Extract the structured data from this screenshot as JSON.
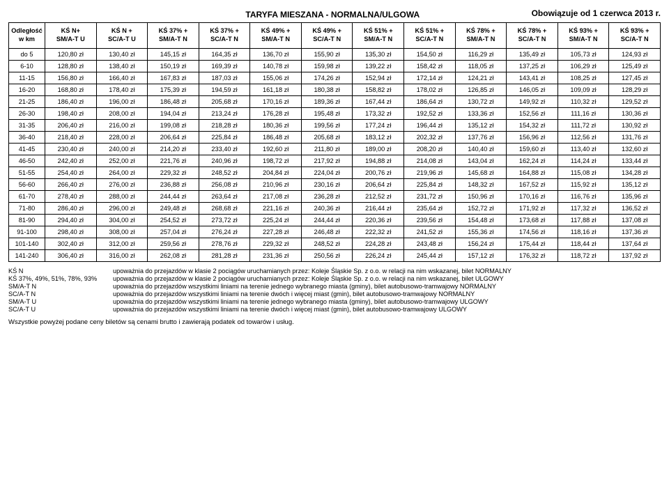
{
  "header": {
    "title": "TARYFA MIESZANA - NORMALNA/ULGOWA",
    "effective": "Obowiązuje od 1 czerwca 2013 r."
  },
  "table": {
    "col_header_dist_l1": "Odległość",
    "col_header_dist_l2": "w km",
    "columns": [
      {
        "l1": "KŚ N+",
        "l2": "SM/A-T U"
      },
      {
        "l1": "KŚ N +",
        "l2": "SC/A-T U"
      },
      {
        "l1": "KŚ 37% +",
        "l2": "SM/A-T N"
      },
      {
        "l1": "KŚ 37% +",
        "l2": "SC/A-T N"
      },
      {
        "l1": "KŚ 49% +",
        "l2": "SM/A-T N"
      },
      {
        "l1": "KŚ 49% +",
        "l2": "SC/A-T N"
      },
      {
        "l1": "KŚ 51% +",
        "l2": "SM/A-T N"
      },
      {
        "l1": "KŚ 51% +",
        "l2": "SC/A-T N"
      },
      {
        "l1": "KŚ 78% +",
        "l2": "SM/A-T N"
      },
      {
        "l1": "KŚ 78% +",
        "l2": "SC/A-T N"
      },
      {
        "l1": "KŚ 93% +",
        "l2": "SM/A-T N"
      },
      {
        "l1": "KŚ 93% +",
        "l2": "SC/A-T N"
      }
    ],
    "rows": [
      {
        "dist": "do 5",
        "cells": [
          "120,80 zł",
          "130,40 zł",
          "145,15 zł",
          "164,35 zł",
          "136,70 zł",
          "155,90 zł",
          "135,30 zł",
          "154,50 zł",
          "116,29 zł",
          "135,49 zł",
          "105,73 zł",
          "124,93 zł"
        ]
      },
      {
        "dist": "6-10",
        "cells": [
          "128,80 zł",
          "138,40 zł",
          "150,19 zł",
          "169,39 zł",
          "140,78 zł",
          "159,98 zł",
          "139,22 zł",
          "158,42 zł",
          "118,05 zł",
          "137,25 zł",
          "106,29 zł",
          "125,49 zł"
        ]
      },
      {
        "dist": "11-15",
        "cells": [
          "156,80 zł",
          "166,40 zł",
          "167,83 zł",
          "187,03 zł",
          "155,06 zł",
          "174,26 zł",
          "152,94 zł",
          "172,14 zł",
          "124,21 zł",
          "143,41 zł",
          "108,25 zł",
          "127,45 zł"
        ]
      },
      {
        "dist": "16-20",
        "cells": [
          "168,80 zł",
          "178,40 zł",
          "175,39 zł",
          "194,59 zł",
          "161,18 zł",
          "180,38 zł",
          "158,82 zł",
          "178,02 zł",
          "126,85 zł",
          "146,05 zł",
          "109,09 zł",
          "128,29 zł"
        ]
      },
      {
        "dist": "21-25",
        "cells": [
          "186,40 zł",
          "196,00 zł",
          "186,48 zł",
          "205,68 zł",
          "170,16 zł",
          "189,36 zł",
          "167,44 zł",
          "186,64 zł",
          "130,72 zł",
          "149,92 zł",
          "110,32 zł",
          "129,52 zł"
        ]
      },
      {
        "dist": "26-30",
        "cells": [
          "198,40 zł",
          "208,00 zł",
          "194,04 zł",
          "213,24 zł",
          "176,28 zł",
          "195,48 zł",
          "173,32 zł",
          "192,52 zł",
          "133,36 zł",
          "152,56 zł",
          "111,16 zł",
          "130,36 zł"
        ]
      },
      {
        "dist": "31-35",
        "cells": [
          "206,40 zł",
          "216,00 zł",
          "199,08 zł",
          "218,28 zł",
          "180,36 zł",
          "199,56 zł",
          "177,24 zł",
          "196,44 zł",
          "135,12 zł",
          "154,32 zł",
          "111,72 zł",
          "130,92 zł"
        ]
      },
      {
        "dist": "36-40",
        "cells": [
          "218,40 zł",
          "228,00 zł",
          "206,64 zł",
          "225,84 zł",
          "186,48 zł",
          "205,68 zł",
          "183,12 zł",
          "202,32 zł",
          "137,76 zł",
          "156,96 zł",
          "112,56 zł",
          "131,76 zł"
        ]
      },
      {
        "dist": "41-45",
        "cells": [
          "230,40 zł",
          "240,00 zł",
          "214,20 zł",
          "233,40 zł",
          "192,60 zł",
          "211,80 zł",
          "189,00 zł",
          "208,20 zł",
          "140,40 zł",
          "159,60 zł",
          "113,40 zł",
          "132,60 zł"
        ]
      },
      {
        "dist": "46-50",
        "cells": [
          "242,40 zł",
          "252,00 zł",
          "221,76 zł",
          "240,96 zł",
          "198,72 zł",
          "217,92 zł",
          "194,88 zł",
          "214,08 zł",
          "143,04 zł",
          "162,24 zł",
          "114,24 zł",
          "133,44 zł"
        ]
      },
      {
        "dist": "51-55",
        "cells": [
          "254,40 zł",
          "264,00 zł",
          "229,32 zł",
          "248,52 zł",
          "204,84 zł",
          "224,04 zł",
          "200,76 zł",
          "219,96 zł",
          "145,68 zł",
          "164,88 zł",
          "115,08 zł",
          "134,28 zł"
        ]
      },
      {
        "dist": "56-60",
        "cells": [
          "266,40 zł",
          "276,00 zł",
          "236,88 zł",
          "256,08 zł",
          "210,96 zł",
          "230,16 zł",
          "206,64 zł",
          "225,84 zł",
          "148,32 zł",
          "167,52 zł",
          "115,92 zł",
          "135,12 zł"
        ]
      },
      {
        "dist": "61-70",
        "cells": [
          "278,40 zł",
          "288,00 zł",
          "244,44 zł",
          "263,64 zł",
          "217,08 zł",
          "236,28 zł",
          "212,52 zł",
          "231,72 zł",
          "150,96 zł",
          "170,16 zł",
          "116,76 zł",
          "135,96 zł"
        ]
      },
      {
        "dist": "71-80",
        "cells": [
          "286,40 zł",
          "296,00 zł",
          "249,48 zł",
          "268,68 zł",
          "221,16 zł",
          "240,36 zł",
          "216,44 zł",
          "235,64 zł",
          "152,72 zł",
          "171,92 zł",
          "117,32 zł",
          "136,52 zł"
        ]
      },
      {
        "dist": "81-90",
        "cells": [
          "294,40 zł",
          "304,00 zł",
          "254,52 zł",
          "273,72 zł",
          "225,24 zł",
          "244,44 zł",
          "220,36 zł",
          "239,56 zł",
          "154,48 zł",
          "173,68 zł",
          "117,88 zł",
          "137,08 zł"
        ]
      },
      {
        "dist": "91-100",
        "cells": [
          "298,40 zł",
          "308,00 zł",
          "257,04 zł",
          "276,24 zł",
          "227,28 zł",
          "246,48 zł",
          "222,32 zł",
          "241,52 zł",
          "155,36 zł",
          "174,56 zł",
          "118,16 zł",
          "137,36 zł"
        ]
      },
      {
        "dist": "101-140",
        "cells": [
          "302,40 zł",
          "312,00 zł",
          "259,56 zł",
          "278,76 zł",
          "229,32 zł",
          "248,52 zł",
          "224,28 zł",
          "243,48 zł",
          "156,24 zł",
          "175,44 zł",
          "118,44 zł",
          "137,64 zł"
        ]
      },
      {
        "dist": "141-240",
        "cells": [
          "306,40 zł",
          "316,00 zł",
          "262,08 zł",
          "281,28 zł",
          "231,36 zł",
          "250,56 zł",
          "226,24 zł",
          "245,44 zł",
          "157,12 zł",
          "176,32 zł",
          "118,72 zł",
          "137,92 zł"
        ]
      }
    ]
  },
  "legend": [
    {
      "key": "KŚ N",
      "desc": "upoważnia do przejazdów w klasie 2 pociągów uruchamianych przez: Koleje Śląskie Sp. z o.o. w relacji na nim wskazanej, bilet  NORMALNY"
    },
    {
      "key": "KŚ 37%, 49%, 51%, 78%, 93%",
      "desc": "upoważnia do przejazdów w klasie 2 pociągów uruchamianych przez: Koleje Śląskie Sp. z o.o. w relacji na nim wskazanej, bilet  ULGOWY"
    },
    {
      "key": "SM/A-T N",
      "desc": "upoważnia do przejazdów wszystkimi liniami na terenie jednego wybranego miasta (gminy), bilet autobusowo-tramwajowy  NORMALNY"
    },
    {
      "key": "SC/A-T N",
      "desc": "upoważnia do przejazdów wszystkimi liniami na terenie dwóch i więcej miast (gmin), bilet autobusowo-tramwajowy NORMALNY"
    },
    {
      "key": "SM/A-T U",
      "desc": "upoważnia do przejazdów wszystkimi liniami na terenie jednego wybranego miasta (gminy), bilet autobusowo-tramwajowy  ULGOWY"
    },
    {
      "key": "SC/A-T U",
      "desc": "upoważnia do przejazdów wszystkimi liniami na terenie dwóch i więcej miast (gmin), bilet autobusowo-tramwajowy ULGOWY"
    }
  ],
  "footer": "Wszystkie powyżej podane ceny biletów są cenami brutto i zawierają podatek od towarów i usług."
}
